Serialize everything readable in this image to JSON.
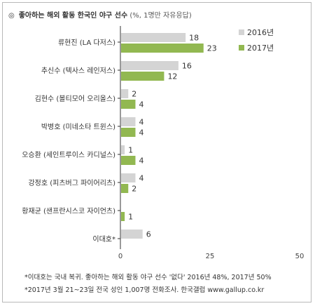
{
  "header": {
    "bullet": "◎",
    "title": "좋아하는 해외 활동 한국인 야구 선수",
    "unit_note": "(%, 1명만 자유응답)"
  },
  "footnotes": [
    "*이대호는 국내 복귀. 좋아하는 해외 활동 야구 선수 '없다' 2016년 48%, 2017년 50%",
    "*2017년 3월 21~23일 전국 성인 1,007명 전화조사. 한국갤럽 www.gallup.co.kr"
  ],
  "colors": {
    "s2016": "#d4d4d4",
    "s2017": "#92b851"
  },
  "chart_data": {
    "type": "bar",
    "orientation": "horizontal",
    "categories": [
      "류현진 (LA 다저스)",
      "추신수 (텍사스 레인저스)",
      "김현수 (볼티모어 오리올스)",
      "박병호 (미네소타 트윈스)",
      "오승환 (세인트루이스 카디널스)",
      "강정호 (피츠버그 파이어리츠)",
      "황재균 (샌프란시스코 자이언츠)",
      "이대호*"
    ],
    "series": [
      {
        "name": "2016년",
        "values": [
          18,
          16,
          2,
          4,
          1,
          4,
          null,
          6
        ]
      },
      {
        "name": "2017년",
        "values": [
          23,
          12,
          4,
          4,
          4,
          2,
          1,
          null
        ]
      }
    ],
    "xlim": [
      0,
      50
    ],
    "xticks": [
      0,
      25,
      50
    ],
    "legend": "top-right"
  }
}
